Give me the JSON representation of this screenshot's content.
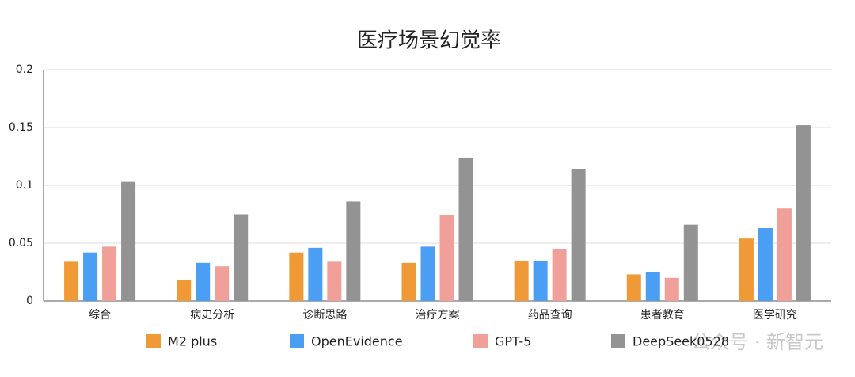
{
  "chart_data": {
    "type": "bar",
    "title": "医疗场景幻觉率",
    "categories": [
      "综合",
      "病史分析",
      "诊断思路",
      "治疗方案",
      "药品查询",
      "患者教育",
      "医学研究"
    ],
    "series": [
      {
        "name": "M2 plus",
        "color": "#f09a37",
        "values": [
          0.034,
          0.018,
          0.042,
          0.033,
          0.035,
          0.023,
          0.054
        ]
      },
      {
        "name": "OpenEvidence",
        "color": "#4a9ff5",
        "values": [
          0.042,
          0.033,
          0.046,
          0.047,
          0.035,
          0.025,
          0.063
        ]
      },
      {
        "name": "GPT-5",
        "color": "#f0a099",
        "values": [
          0.047,
          0.03,
          0.034,
          0.074,
          0.045,
          0.02,
          0.08
        ]
      },
      {
        "name": "DeepSeek0528",
        "color": "#939393",
        "values": [
          0.103,
          0.075,
          0.086,
          0.124,
          0.114,
          0.066,
          0.152
        ]
      }
    ],
    "ylim": [
      0,
      0.2
    ],
    "yticks": [
      0,
      0.05,
      0.1,
      0.15,
      0.2
    ],
    "grid": true,
    "legend": "bottom",
    "watermark": "公众号 · 新智元"
  }
}
